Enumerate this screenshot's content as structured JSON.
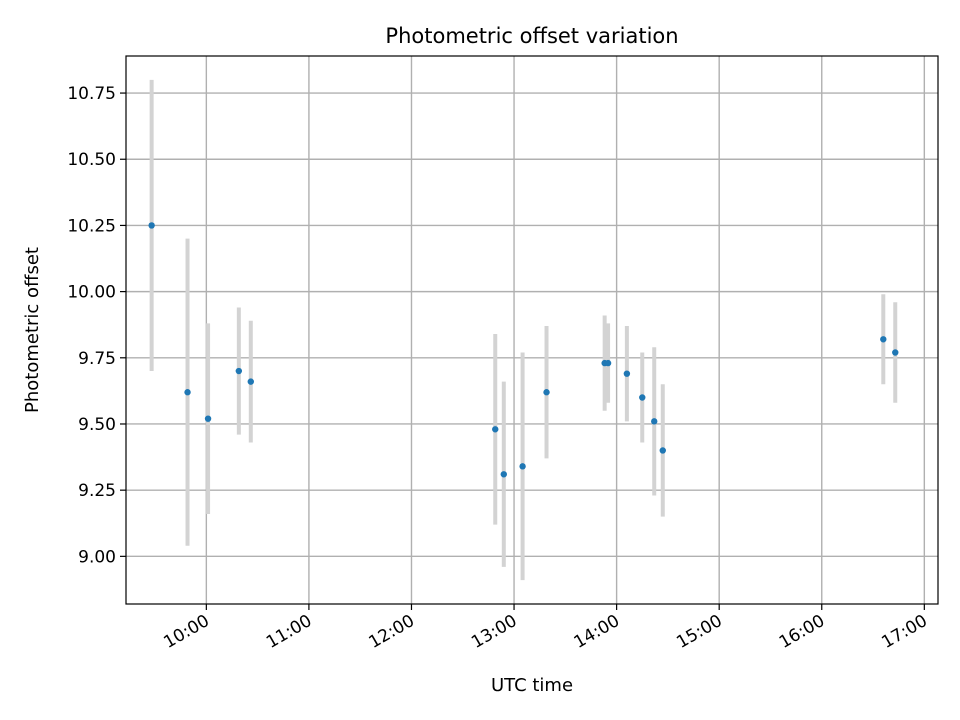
{
  "chart_data": {
    "type": "scatter",
    "title": "Photometric offset variation",
    "xlabel": "UTC time",
    "ylabel": "Photometric offset",
    "x_ticks": [
      "10:00",
      "11:00",
      "12:00",
      "13:00",
      "14:00",
      "15:00",
      "16:00",
      "17:00"
    ],
    "y_ticks": [
      "9.00",
      "9.25",
      "9.50",
      "9.75",
      "10.00",
      "10.25",
      "10.50",
      "10.75"
    ],
    "xlim": [
      "09:13",
      "17:08"
    ],
    "ylim": [
      8.82,
      10.89
    ],
    "grid": true,
    "point_color": "#1f77b4",
    "errorbar_color": "#d3d3d3",
    "points": [
      {
        "time": "09:28",
        "value": 10.25,
        "err": 0.55
      },
      {
        "time": "09:49",
        "value": 9.62,
        "err": 0.58
      },
      {
        "time": "10:01",
        "value": 9.52,
        "err": 0.36
      },
      {
        "time": "10:19",
        "value": 9.7,
        "err": 0.24
      },
      {
        "time": "10:26",
        "value": 9.66,
        "err": 0.23
      },
      {
        "time": "12:49",
        "value": 9.48,
        "err": 0.36
      },
      {
        "time": "12:54",
        "value": 9.31,
        "err": 0.35
      },
      {
        "time": "13:05",
        "value": 9.34,
        "err": 0.43
      },
      {
        "time": "13:19",
        "value": 9.62,
        "err": 0.25
      },
      {
        "time": "13:53",
        "value": 9.73,
        "err": 0.18
      },
      {
        "time": "13:55",
        "value": 9.73,
        "err": 0.15
      },
      {
        "time": "14:06",
        "value": 9.69,
        "err": 0.18
      },
      {
        "time": "14:15",
        "value": 9.6,
        "err": 0.17
      },
      {
        "time": "14:22",
        "value": 9.51,
        "err": 0.28
      },
      {
        "time": "14:27",
        "value": 9.4,
        "err": 0.25
      },
      {
        "time": "16:36",
        "value": 9.82,
        "err": 0.17
      },
      {
        "time": "16:43",
        "value": 9.77,
        "err": 0.19
      }
    ]
  }
}
